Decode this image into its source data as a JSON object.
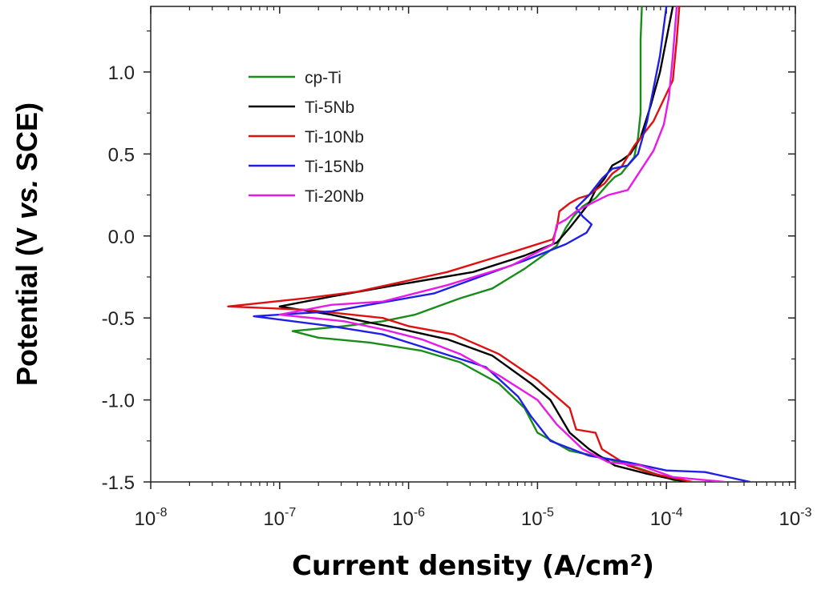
{
  "chart_data": {
    "type": "line",
    "title": "",
    "xlabel": "Current density (A/cm²)",
    "ylabel_parts": [
      "Potential (V ",
      "vs.",
      " SCE)"
    ],
    "x_scale": "log",
    "xlim_exp": [
      -8,
      -3
    ],
    "ylim": [
      -1.5,
      1.4
    ],
    "x_ticks": [
      {
        "base": "10",
        "exp": "-8"
      },
      {
        "base": "10",
        "exp": "-7"
      },
      {
        "base": "10",
        "exp": "-6"
      },
      {
        "base": "10",
        "exp": "-5"
      },
      {
        "base": "10",
        "exp": "-4"
      },
      {
        "base": "10",
        "exp": "-3"
      }
    ],
    "y_ticks": [
      {
        "value": -1.5,
        "label": "-1.5"
      },
      {
        "value": -1.0,
        "label": "-1.0"
      },
      {
        "value": -0.5,
        "label": "-0.5"
      },
      {
        "value": 0.0,
        "label": "0.0"
      },
      {
        "value": 0.5,
        "label": "0.5"
      },
      {
        "value": 1.0,
        "label": "1.0"
      }
    ],
    "legend_position": "upper-left",
    "series": [
      {
        "name": "cp-Ti",
        "color": "#1a8c1a",
        "points": [
          [
            -3.9,
            -1.5
          ],
          [
            -4.2,
            -1.42
          ],
          [
            -4.5,
            -1.35
          ],
          [
            -4.75,
            -1.31
          ],
          [
            -5.0,
            -1.2
          ],
          [
            -5.1,
            -1.05
          ],
          [
            -5.3,
            -0.9
          ],
          [
            -5.6,
            -0.77
          ],
          [
            -5.9,
            -0.7
          ],
          [
            -6.3,
            -0.65
          ],
          [
            -6.7,
            -0.62
          ],
          [
            -6.9,
            -0.58
          ],
          [
            -6.5,
            -0.55
          ],
          [
            -6.2,
            -0.52
          ],
          [
            -5.95,
            -0.48
          ],
          [
            -5.6,
            -0.38
          ],
          [
            -5.35,
            -0.32
          ],
          [
            -5.1,
            -0.2
          ],
          [
            -4.85,
            -0.06
          ],
          [
            -4.78,
            0.05
          ],
          [
            -4.72,
            0.12
          ],
          [
            -4.65,
            0.18
          ],
          [
            -4.55,
            0.23
          ],
          [
            -4.45,
            0.32
          ],
          [
            -4.4,
            0.36
          ],
          [
            -4.35,
            0.38
          ],
          [
            -4.25,
            0.48
          ],
          [
            -4.22,
            0.6
          ],
          [
            -4.2,
            0.75
          ],
          [
            -4.2,
            1.0
          ],
          [
            -4.2,
            1.2
          ],
          [
            -4.19,
            1.4
          ]
        ]
      },
      {
        "name": "Ti-5Nb",
        "color": "#000000",
        "points": [
          [
            -3.85,
            -1.5
          ],
          [
            -4.15,
            -1.45
          ],
          [
            -4.4,
            -1.4
          ],
          [
            -4.6,
            -1.3
          ],
          [
            -4.75,
            -1.2
          ],
          [
            -4.9,
            -1.0
          ],
          [
            -5.05,
            -0.9
          ],
          [
            -5.35,
            -0.73
          ],
          [
            -5.7,
            -0.63
          ],
          [
            -6.1,
            -0.56
          ],
          [
            -6.35,
            -0.52
          ],
          [
            -6.6,
            -0.48
          ],
          [
            -7.0,
            -0.43
          ],
          [
            -6.6,
            -0.37
          ],
          [
            -6.1,
            -0.3
          ],
          [
            -5.5,
            -0.22
          ],
          [
            -5.1,
            -0.12
          ],
          [
            -4.85,
            -0.04
          ],
          [
            -4.75,
            0.05
          ],
          [
            -4.68,
            0.12
          ],
          [
            -4.6,
            0.2
          ],
          [
            -4.55,
            0.28
          ],
          [
            -4.48,
            0.35
          ],
          [
            -4.42,
            0.43
          ],
          [
            -4.35,
            0.46
          ],
          [
            -4.28,
            0.5
          ],
          [
            -4.2,
            0.6
          ],
          [
            -4.12,
            0.8
          ],
          [
            -4.05,
            1.0
          ],
          [
            -4.0,
            1.2
          ],
          [
            -3.95,
            1.4
          ]
        ]
      },
      {
        "name": "Ti-10Nb",
        "color": "#e01010",
        "points": [
          [
            -3.8,
            -1.5
          ],
          [
            -4.1,
            -1.45
          ],
          [
            -4.3,
            -1.4
          ],
          [
            -4.5,
            -1.3
          ],
          [
            -4.55,
            -1.2
          ],
          [
            -4.7,
            -1.18
          ],
          [
            -4.75,
            -1.05
          ],
          [
            -5.0,
            -0.88
          ],
          [
            -5.3,
            -0.72
          ],
          [
            -5.65,
            -0.6
          ],
          [
            -6.0,
            -0.55
          ],
          [
            -6.2,
            -0.5
          ],
          [
            -6.8,
            -0.45
          ],
          [
            -7.4,
            -0.43
          ],
          [
            -6.8,
            -0.38
          ],
          [
            -6.4,
            -0.34
          ],
          [
            -5.7,
            -0.22
          ],
          [
            -5.2,
            -0.1
          ],
          [
            -4.88,
            -0.02
          ],
          [
            -4.85,
            0.05
          ],
          [
            -4.83,
            0.15
          ],
          [
            -4.75,
            0.2
          ],
          [
            -4.68,
            0.23
          ],
          [
            -4.6,
            0.25
          ],
          [
            -4.48,
            0.32
          ],
          [
            -4.42,
            0.38
          ],
          [
            -4.35,
            0.42
          ],
          [
            -4.25,
            0.55
          ],
          [
            -4.1,
            0.7
          ],
          [
            -3.95,
            0.95
          ],
          [
            -3.92,
            1.2
          ],
          [
            -3.9,
            1.4
          ]
        ]
      },
      {
        "name": "Ti-15Nb",
        "color": "#1f1fe8",
        "points": [
          [
            -3.35,
            -1.5
          ],
          [
            -3.7,
            -1.44
          ],
          [
            -4.0,
            -1.43
          ],
          [
            -4.3,
            -1.38
          ],
          [
            -4.6,
            -1.34
          ],
          [
            -4.9,
            -1.25
          ],
          [
            -5.05,
            -1.1
          ],
          [
            -5.15,
            -0.98
          ],
          [
            -5.4,
            -0.8
          ],
          [
            -5.8,
            -0.7
          ],
          [
            -6.2,
            -0.6
          ],
          [
            -6.6,
            -0.55
          ],
          [
            -7.2,
            -0.49
          ],
          [
            -6.6,
            -0.46
          ],
          [
            -5.8,
            -0.35
          ],
          [
            -5.1,
            -0.15
          ],
          [
            -4.78,
            -0.05
          ],
          [
            -4.62,
            0.02
          ],
          [
            -4.58,
            0.07
          ],
          [
            -4.65,
            0.12
          ],
          [
            -4.7,
            0.17
          ],
          [
            -4.6,
            0.25
          ],
          [
            -4.5,
            0.35
          ],
          [
            -4.42,
            0.41
          ],
          [
            -4.3,
            0.43
          ],
          [
            -4.22,
            0.5
          ],
          [
            -4.15,
            0.7
          ],
          [
            -4.1,
            0.9
          ],
          [
            -4.05,
            1.1
          ],
          [
            -4.0,
            1.4
          ]
        ]
      },
      {
        "name": "Ti-20Nb",
        "color": "#e81ae8",
        "points": [
          [
            -3.55,
            -1.5
          ],
          [
            -3.95,
            -1.47
          ],
          [
            -4.2,
            -1.4
          ],
          [
            -4.45,
            -1.38
          ],
          [
            -4.65,
            -1.3
          ],
          [
            -4.85,
            -1.15
          ],
          [
            -5.0,
            -1.0
          ],
          [
            -5.3,
            -0.85
          ],
          [
            -5.6,
            -0.72
          ],
          [
            -5.9,
            -0.63
          ],
          [
            -6.2,
            -0.57
          ],
          [
            -6.5,
            -0.52
          ],
          [
            -7.0,
            -0.48
          ],
          [
            -6.6,
            -0.42
          ],
          [
            -6.2,
            -0.4
          ],
          [
            -5.7,
            -0.3
          ],
          [
            -5.2,
            -0.18
          ],
          [
            -4.88,
            -0.05
          ],
          [
            -4.85,
            0.07
          ],
          [
            -4.78,
            0.1
          ],
          [
            -4.7,
            0.15
          ],
          [
            -4.58,
            0.2
          ],
          [
            -4.45,
            0.25
          ],
          [
            -4.3,
            0.28
          ],
          [
            -4.2,
            0.4
          ],
          [
            -4.1,
            0.52
          ],
          [
            -4.02,
            0.68
          ],
          [
            -3.98,
            0.85
          ],
          [
            -3.95,
            1.1
          ],
          [
            -3.92,
            1.4
          ]
        ]
      }
    ]
  }
}
